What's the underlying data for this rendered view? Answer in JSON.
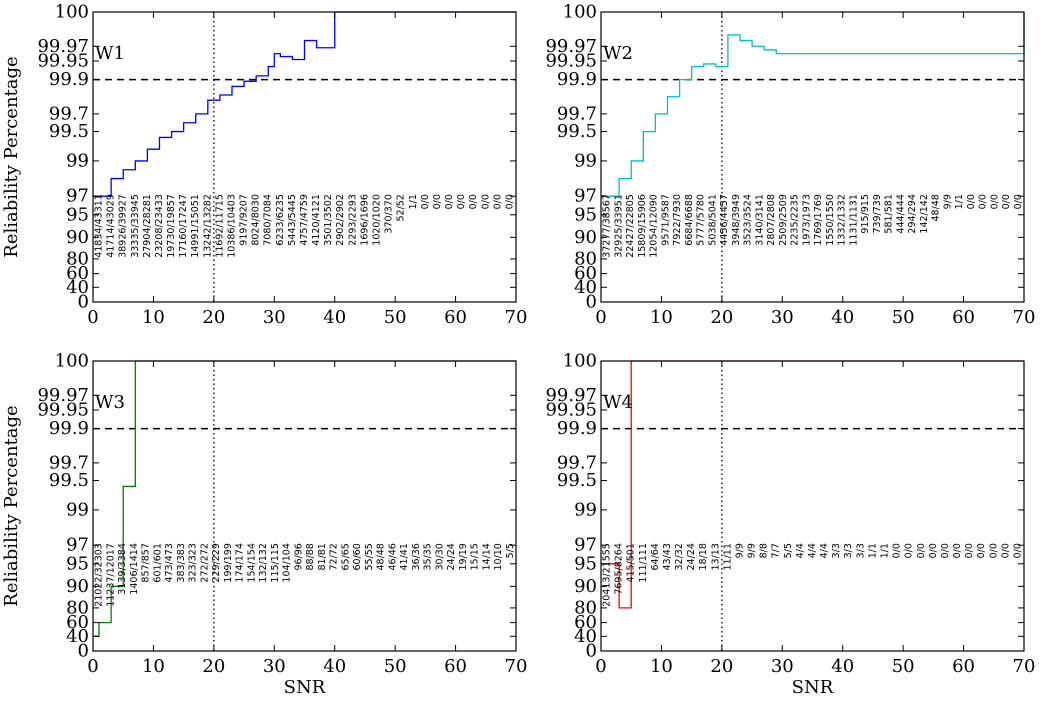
{
  "chart_data": [
    {
      "type": "line",
      "step": true,
      "panel_label": "W1",
      "color": "#0000ff",
      "ylabel": "Reliability Percentage",
      "xlabel": "",
      "xlim": [
        0,
        70
      ],
      "xticks": [
        "0",
        "10",
        "20",
        "30",
        "40",
        "50",
        "60",
        "70"
      ],
      "yticks": [
        "0",
        "40",
        "60",
        "80",
        "90",
        "95",
        "97",
        "99",
        "99.5",
        "99.7",
        "99.9",
        "99.95",
        "99.97",
        "100"
      ],
      "reference_lines": {
        "dashed_y": 99.9,
        "dotted_x": 20
      },
      "x": [
        0,
        1,
        2,
        3,
        4,
        5,
        6,
        7,
        8,
        9,
        10,
        11,
        12,
        13,
        14,
        15,
        16,
        17,
        18,
        19,
        20,
        21,
        22,
        23,
        24,
        25,
        26,
        27,
        28,
        29,
        30,
        31,
        32,
        33,
        34,
        35,
        36,
        37,
        38,
        39,
        40,
        70
      ],
      "y": [
        97.0,
        97.0,
        97.0,
        98.0,
        98.0,
        98.5,
        98.5,
        99.0,
        99.0,
        99.2,
        99.2,
        99.4,
        99.4,
        99.5,
        99.5,
        99.6,
        99.6,
        99.7,
        99.7,
        99.78,
        99.78,
        99.81,
        99.81,
        99.86,
        99.86,
        99.89,
        99.89,
        99.91,
        99.91,
        99.935,
        99.96,
        99.956,
        99.956,
        99.952,
        99.952,
        99.975,
        99.975,
        99.968,
        99.968,
        99.968,
        100,
        100
      ],
      "count_labels": [
        "41834/43311",
        "41714/43029",
        "38926/39927",
        "33335/33945",
        "27904/28281",
        "23208/23433",
        "19730/19857",
        "17160/17247",
        "14991/15051",
        "13242/13282",
        "11692/11715",
        "10386/10403",
        "9197/9207",
        "8024/8030",
        "7080/7084",
        "6233/6235",
        "5443/5445",
        "4757/4759",
        "4120/4121",
        "3501/3502",
        "2902/2902",
        "2293/2293",
        "1696/1696",
        "1020/1020",
        "370/370",
        "52/52",
        "1/1",
        "0/0",
        "0/0",
        "0/0",
        "0/0",
        "0/0",
        "0/0",
        "0/0",
        "0/0"
      ]
    },
    {
      "type": "line",
      "step": true,
      "panel_label": "W2",
      "color": "#00bfbf",
      "ylabel": "",
      "xlabel": "",
      "xlim": [
        0,
        70
      ],
      "xticks": [
        "0",
        "10",
        "20",
        "30",
        "40",
        "50",
        "60",
        "70"
      ],
      "yticks": [
        "0",
        "40",
        "60",
        "80",
        "90",
        "95",
        "97",
        "99",
        "99.5",
        "99.7",
        "99.9",
        "99.95",
        "99.97",
        "100"
      ],
      "reference_lines": {
        "dashed_y": 99.9,
        "dotted_x": 20
      },
      "x": [
        0,
        3,
        5,
        7,
        9,
        11,
        13,
        15,
        17,
        19,
        21,
        23,
        25,
        27,
        29,
        70
      ],
      "y": [
        97.0,
        98.0,
        99.0,
        99.5,
        99.7,
        99.8,
        99.9,
        99.935,
        99.942,
        99.935,
        99.98,
        99.975,
        99.97,
        99.965,
        99.96,
        100
      ],
      "count_labels": [
        "37277/38567",
        "32925/33951",
        "22427/22805",
        "15809/15906",
        "12054/12090",
        "9571/9587",
        "7922/7930",
        "6684/6688",
        "5777/5780",
        "5038/5041",
        "4456/4457",
        "3948/3949",
        "3523/3524",
        "3140/3141",
        "2807/2808",
        "2509/2509",
        "2235/2235",
        "1973/1973",
        "1769/1769",
        "1550/1550",
        "1332/1332",
        "1131/1131",
        "915/915",
        "739/739",
        "581/581",
        "444/444",
        "294/294",
        "142/142",
        "48/48",
        "9/9",
        "1/1",
        "0/0",
        "0/0",
        "0/0",
        "0/0",
        "0/0"
      ]
    },
    {
      "type": "line",
      "step": true,
      "panel_label": "W3",
      "color": "#008000",
      "ylabel": "Reliability Percentage",
      "xlabel": "SNR",
      "xlim": [
        0,
        70
      ],
      "xticks": [
        "0",
        "10",
        "20",
        "30",
        "40",
        "50",
        "60",
        "70"
      ],
      "yticks": [
        "0",
        "40",
        "60",
        "80",
        "90",
        "95",
        "97",
        "99",
        "99.5",
        "99.7",
        "99.9",
        "99.95",
        "99.97",
        "100"
      ],
      "reference_lines": {
        "dashed_y": 99.9,
        "dotted_x": 20
      },
      "x": [
        0,
        1,
        3,
        5,
        7,
        70
      ],
      "y": [
        40,
        60,
        90,
        99.4,
        100,
        100
      ],
      "count_labels": [
        "21022/32303",
        "11237/12017",
        "3139/3384",
        "1406/1414",
        "857/857",
        "601/601",
        "473/473",
        "383/383",
        "323/323",
        "272/272",
        "229/229",
        "199/199",
        "174/174",
        "154/154",
        "132/132",
        "115/115",
        "104/104",
        "96/96",
        "88/88",
        "81/81",
        "72/72",
        "65/65",
        "60/60",
        "55/55",
        "48/48",
        "46/46",
        "41/41",
        "36/36",
        "35/35",
        "30/30",
        "24/24",
        "19/19",
        "15/15",
        "14/14",
        "10/10",
        "5/5"
      ]
    },
    {
      "type": "line",
      "step": true,
      "panel_label": "W4",
      "color": "#ff0000",
      "ylabel": "",
      "xlabel": "SNR",
      "xlim": [
        0,
        70
      ],
      "xticks": [
        "0",
        "10",
        "20",
        "30",
        "40",
        "50",
        "60",
        "70"
      ],
      "yticks": [
        "0",
        "40",
        "60",
        "80",
        "90",
        "95",
        "97",
        "99",
        "99.5",
        "99.7",
        "99.9",
        "99.95",
        "99.97",
        "100"
      ],
      "reference_lines": {
        "dashed_y": 99.9,
        "dotted_x": 20
      },
      "x": [
        0,
        1,
        3,
        5,
        70
      ],
      "y": [
        95,
        95,
        80,
        100,
        100
      ],
      "count_labels": [
        "20413/21555",
        "7695/8264",
        "415/501",
        "111/111",
        "64/64",
        "43/43",
        "32/32",
        "24/24",
        "18/18",
        "13/13",
        "11/11",
        "9/9",
        "9/9",
        "8/8",
        "7/7",
        "5/5",
        "4/4",
        "4/4",
        "4/4",
        "3/3",
        "3/3",
        "3/3",
        "1/1",
        "1/1",
        "0/0",
        "0/0",
        "0/0",
        "0/0",
        "0/0",
        "0/0",
        "0/0",
        "0/0",
        "0/0",
        "0/0",
        "0/0"
      ]
    }
  ]
}
